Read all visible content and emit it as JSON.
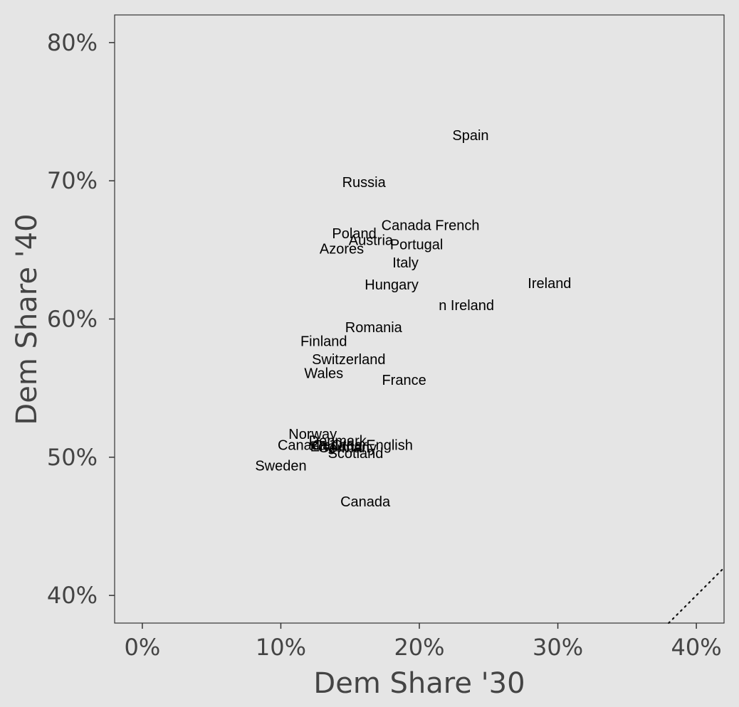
{
  "chart_data": {
    "type": "scatter",
    "title": "",
    "xlabel": "Dem Share '30",
    "ylabel": "Dem Share '40",
    "xlim": [
      -0.02,
      0.42
    ],
    "ylim": [
      0.38,
      0.82
    ],
    "x_ticks": [
      {
        "value": 0.0,
        "label": "0%"
      },
      {
        "value": 0.1,
        "label": "10%"
      },
      {
        "value": 0.2,
        "label": "20%"
      },
      {
        "value": 0.3,
        "label": "30%"
      },
      {
        "value": 0.4,
        "label": "40%"
      }
    ],
    "y_ticks": [
      {
        "value": 0.4,
        "label": "40%"
      },
      {
        "value": 0.5,
        "label": "50%"
      },
      {
        "value": 0.6,
        "label": "60%"
      },
      {
        "value": 0.7,
        "label": "70%"
      },
      {
        "value": 0.8,
        "label": "80%"
      }
    ],
    "grid": false,
    "reference_line": {
      "slope": 1,
      "intercept": 0,
      "style": "dotted"
    },
    "points": [
      {
        "label": "Spain",
        "x": 0.237,
        "y": 0.733
      },
      {
        "label": "Russia",
        "x": 0.16,
        "y": 0.699
      },
      {
        "label": "Canada French",
        "x": 0.208,
        "y": 0.668
      },
      {
        "label": "Poland",
        "x": 0.153,
        "y": 0.662
      },
      {
        "label": "Austria",
        "x": 0.165,
        "y": 0.657
      },
      {
        "label": "Portugal",
        "x": 0.198,
        "y": 0.654
      },
      {
        "label": "Azores",
        "x": 0.144,
        "y": 0.651
      },
      {
        "label": "Italy",
        "x": 0.19,
        "y": 0.641
      },
      {
        "label": "Hungary",
        "x": 0.18,
        "y": 0.625
      },
      {
        "label": "Ireland",
        "x": 0.294,
        "y": 0.626
      },
      {
        "label": "n Ireland",
        "x": 0.234,
        "y": 0.61
      },
      {
        "label": "Romania",
        "x": 0.167,
        "y": 0.594
      },
      {
        "label": "Finland",
        "x": 0.131,
        "y": 0.584
      },
      {
        "label": "Switzerland",
        "x": 0.149,
        "y": 0.571
      },
      {
        "label": "Wales",
        "x": 0.131,
        "y": 0.561
      },
      {
        "label": "France",
        "x": 0.189,
        "y": 0.556
      },
      {
        "label": "Norway",
        "x": 0.123,
        "y": 0.517
      },
      {
        "label": "Denmark",
        "x": 0.141,
        "y": 0.512
      },
      {
        "label": "Canada English",
        "x": 0.159,
        "y": 0.509
      },
      {
        "label": "Canada Other",
        "x": 0.13,
        "y": 0.509
      },
      {
        "label": "England",
        "x": 0.14,
        "y": 0.508
      },
      {
        "label": "Germany",
        "x": 0.148,
        "y": 0.507
      },
      {
        "label": "Scotland",
        "x": 0.154,
        "y": 0.503
      },
      {
        "label": "Sweden",
        "x": 0.1,
        "y": 0.494
      },
      {
        "label": "Canada",
        "x": 0.161,
        "y": 0.468
      }
    ]
  }
}
